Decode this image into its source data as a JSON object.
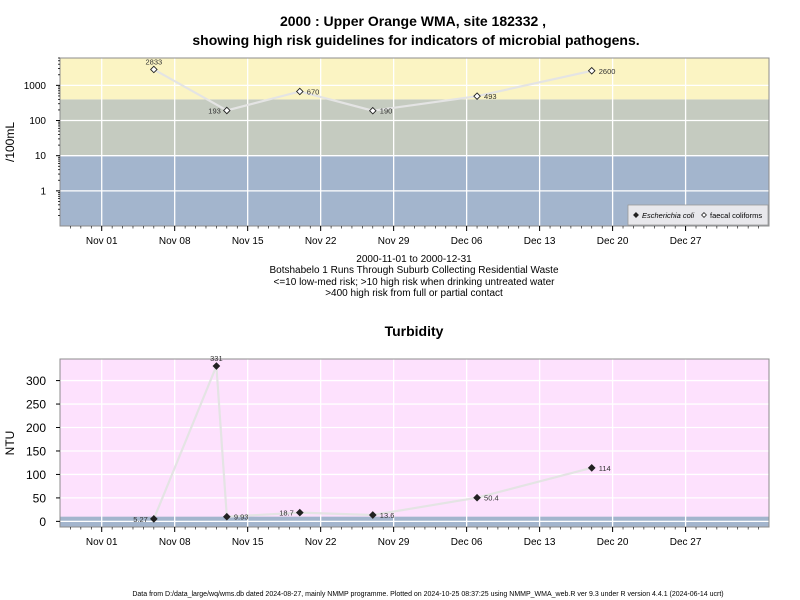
{
  "title": {
    "line1": "2000 : Upper Orange WMA, site 182332 ,",
    "line2": "showing high risk guidelines for indicators of microbial pathogens."
  },
  "notes": [
    "2000-11-01 to 2000-12-31",
    "Botshabelo 1 Runs Through Suburb Collecting Residential Waste",
    "<=10 low-med risk; >10 high risk when drinking untreated water",
    ">400 high risk from full or partial contact"
  ],
  "footer": "Data from D:/data_large/wq/wms.db dated 2024-08-27, mainly NMMP programme. Plotted on 2024-10-25 08:37:25 using NMMP_WMA_web.R ver 9.3 under R version 4.4.1 (2024-06-14 ucrt)",
  "colors": {
    "band_low": "#a3b5cd",
    "band_mid": "#c5cbc0",
    "band_high": "#fbf4c3",
    "turbidity_bg": "#fde1fd",
    "turbidity_band": "#a3b5cd",
    "line": "#e4e4e4",
    "grid": "#ffffff"
  },
  "chart_data": [
    {
      "type": "scatter",
      "title": "",
      "ylabel": "/100mL",
      "yscale": "log",
      "xlim": [
        "2000-10-28",
        "2001-01-04"
      ],
      "ylim": [
        0.1,
        6000
      ],
      "yticks": [
        1,
        10,
        100,
        1000
      ],
      "yticklabels": [
        "1",
        "10",
        "100",
        "1000"
      ],
      "xticks": [
        "2000-11-01",
        "2000-11-08",
        "2000-11-15",
        "2000-11-22",
        "2000-11-29",
        "2000-12-06",
        "2000-12-13",
        "2000-12-20",
        "2000-12-27"
      ],
      "xticklabels": [
        "Nov 01",
        "Nov 08",
        "Nov 15",
        "Nov 22",
        "Nov 29",
        "Dec 06",
        "Dec 13",
        "Dec 20",
        "Dec 27"
      ],
      "bands": [
        {
          "from": 0.1,
          "to": 10,
          "color": "#a3b5cd"
        },
        {
          "from": 10,
          "to": 400,
          "color": "#c5cbc0"
        },
        {
          "from": 400,
          "to": 6000,
          "color": "#fbf4c3"
        }
      ],
      "legend": {
        "position": "bottom-right",
        "entries": [
          "Escherichia coli",
          "faecal coliforms"
        ]
      },
      "series": [
        {
          "name": "faecal coliforms",
          "marker": "open-diamond",
          "points": [
            {
              "x": "2000-11-06",
              "y": 2833,
              "label": "2833",
              "label_pos": "above"
            },
            {
              "x": "2000-11-13",
              "y": 193,
              "label": "193",
              "label_pos": "left"
            },
            {
              "x": "2000-11-20",
              "y": 670,
              "label": "670",
              "label_pos": "right"
            },
            {
              "x": "2000-11-27",
              "y": 190,
              "label": "190",
              "label_pos": "right"
            },
            {
              "x": "2000-12-07",
              "y": 493,
              "label": "493",
              "label_pos": "right"
            },
            {
              "x": "2000-12-18",
              "y": 2600,
              "label": "2600",
              "label_pos": "right"
            }
          ]
        }
      ]
    },
    {
      "type": "line",
      "title": "Turbidity",
      "ylabel": "NTU",
      "xlim": [
        "2000-10-28",
        "2001-01-04"
      ],
      "ylim": [
        -12,
        346
      ],
      "yticks": [
        0,
        50,
        100,
        150,
        200,
        250,
        300
      ],
      "yticklabels": [
        "0",
        "50",
        "100",
        "150",
        "200",
        "250",
        "300"
      ],
      "xticks": [
        "2000-11-01",
        "2000-11-08",
        "2000-11-15",
        "2000-11-22",
        "2000-11-29",
        "2000-12-06",
        "2000-12-13",
        "2000-12-20",
        "2000-12-27"
      ],
      "xticklabels": [
        "Nov 01",
        "Nov 08",
        "Nov 15",
        "Nov 22",
        "Nov 29",
        "Dec 06",
        "Dec 13",
        "Dec 20",
        "Dec 27"
      ],
      "bands": [
        {
          "from": -12,
          "to": 10,
          "color": "#a3b5cd"
        }
      ],
      "series": [
        {
          "marker": "filled-diamond",
          "points": [
            {
              "x": "2000-11-06",
              "y": 5.27,
              "label": "5.27",
              "label_pos": "left"
            },
            {
              "x": "2000-11-12",
              "y": 331,
              "label": "331",
              "label_pos": "above"
            },
            {
              "x": "2000-11-13",
              "y": 9.93,
              "label": "9.93",
              "label_pos": "right"
            },
            {
              "x": "2000-11-20",
              "y": 18.7,
              "label": "18.7",
              "label_pos": "left"
            },
            {
              "x": "2000-11-27",
              "y": 13.6,
              "label": "13.6",
              "label_pos": "right"
            },
            {
              "x": "2000-12-07",
              "y": 50.4,
              "label": "50.4",
              "label_pos": "right"
            },
            {
              "x": "2000-12-18",
              "y": 114,
              "label": "114",
              "label_pos": "right"
            }
          ]
        }
      ]
    }
  ]
}
